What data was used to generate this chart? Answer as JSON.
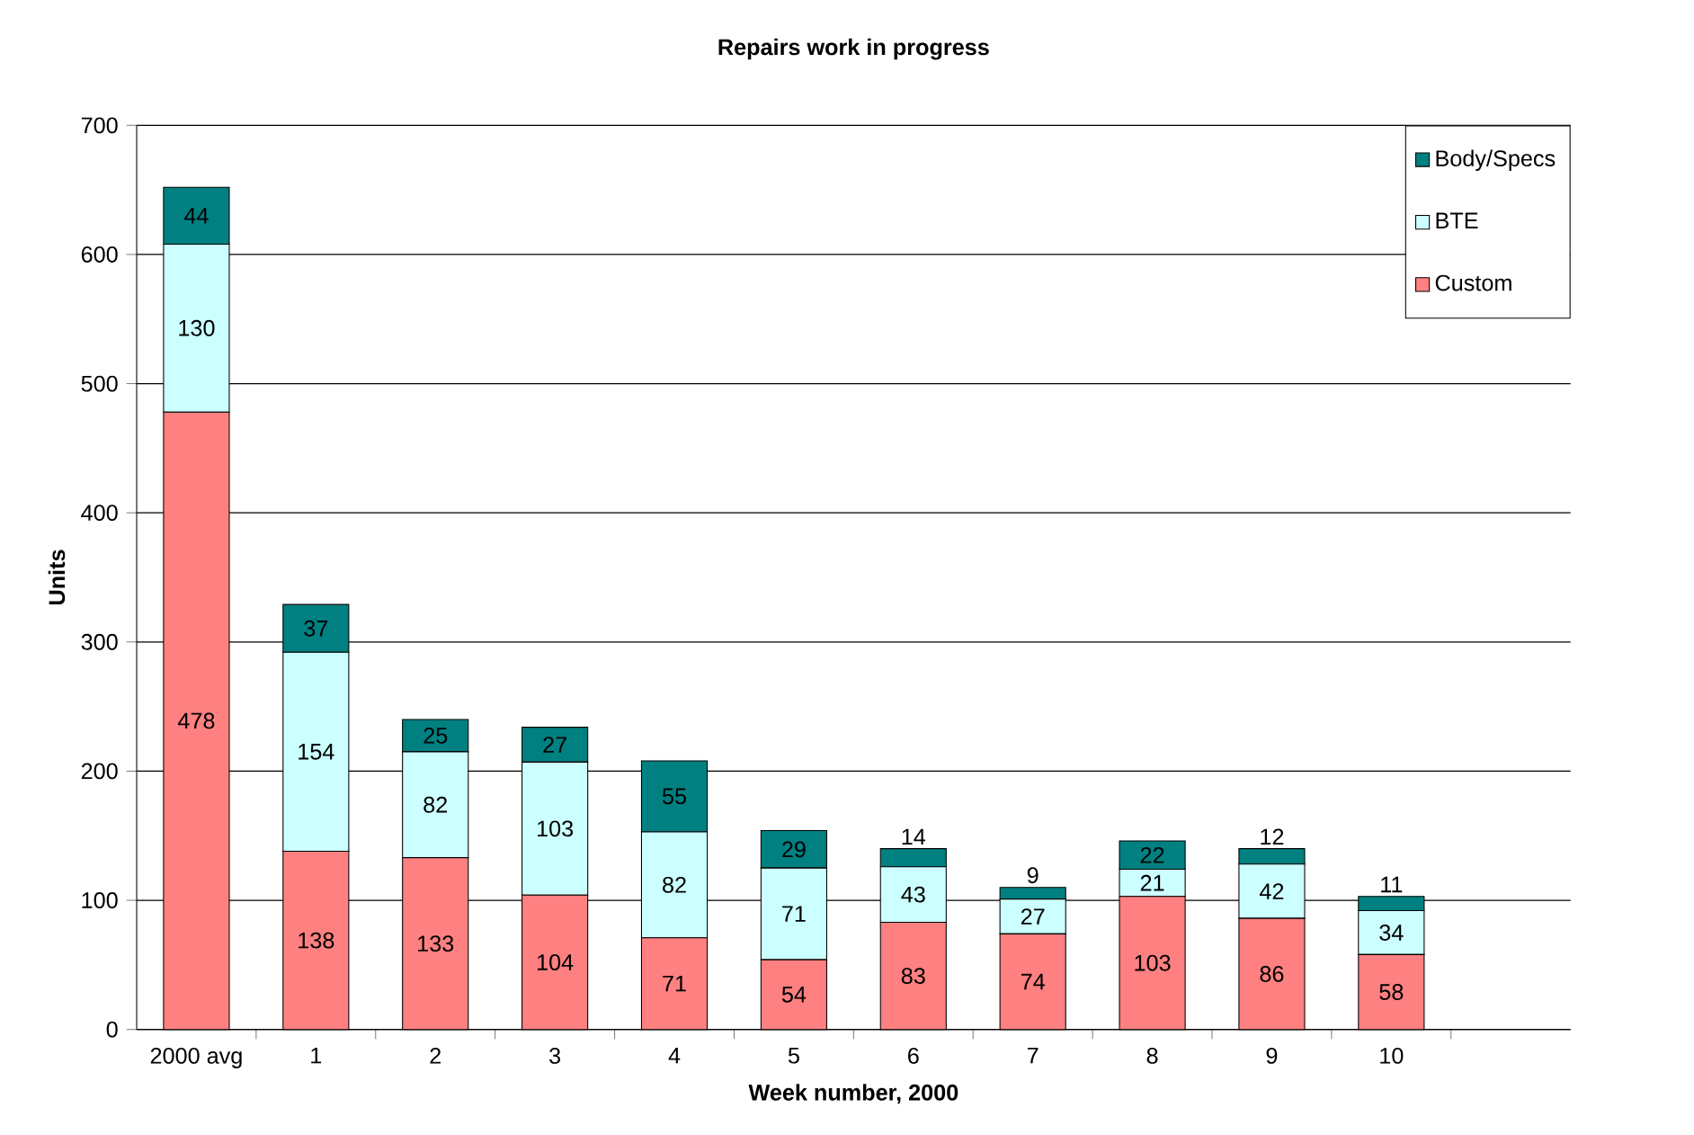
{
  "chart_data": {
    "type": "bar",
    "stacked": true,
    "title": "Repairs work in progress",
    "xlabel": "Week number, 2000",
    "ylabel": "Units",
    "categories": [
      "2000 avg",
      "1",
      "2",
      "3",
      "4",
      "5",
      "6",
      "7",
      "8",
      "9",
      "10",
      null
    ],
    "series": [
      {
        "name": "Custom",
        "color": "#ff8080",
        "values": [
          478,
          138,
          133,
          104,
          71,
          54,
          83,
          74,
          103,
          86,
          58,
          null
        ]
      },
      {
        "name": "BTE",
        "color": "#ccffff",
        "values": [
          130,
          154,
          82,
          103,
          82,
          71,
          43,
          27,
          21,
          42,
          34,
          null
        ]
      },
      {
        "name": "Body/Specs",
        "color": "#008080",
        "values": [
          44,
          37,
          25,
          27,
          55,
          29,
          14,
          9,
          22,
          12,
          11,
          null
        ]
      }
    ],
    "ylim": [
      0,
      700
    ],
    "yticks": [
      0,
      100,
      200,
      300,
      400,
      500,
      600,
      700
    ],
    "grid": "y",
    "legend": "top right",
    "data_labels": true
  }
}
